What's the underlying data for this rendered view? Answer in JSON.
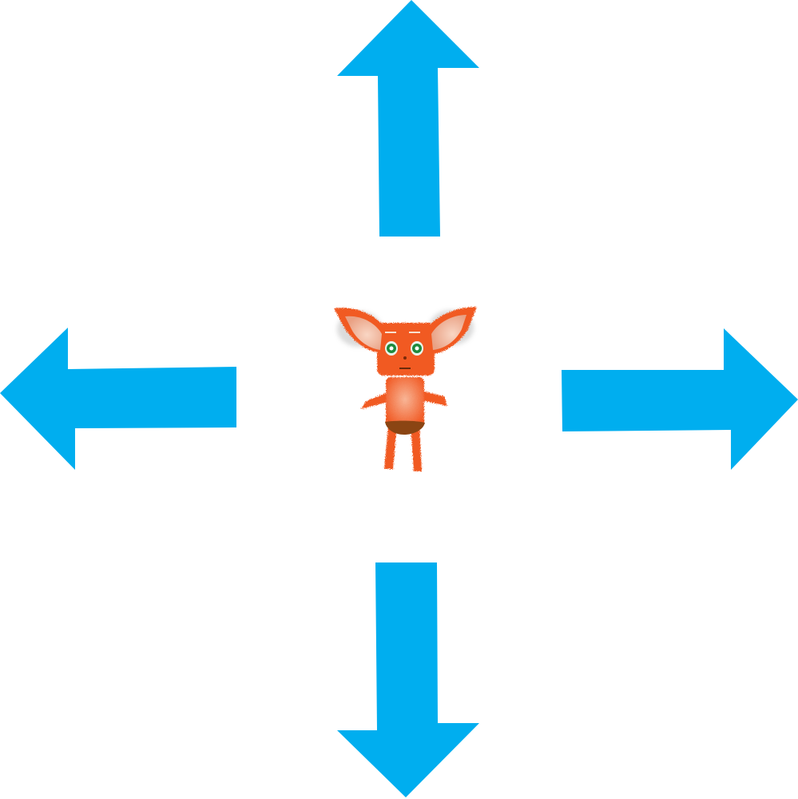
{
  "game": {
    "arrow_color": "#00aeef",
    "controls": [
      {
        "direction": "up",
        "icon": "arrow-up-icon"
      },
      {
        "direction": "left",
        "icon": "arrow-left-icon"
      },
      {
        "direction": "right",
        "icon": "arrow-right-icon"
      },
      {
        "direction": "down",
        "icon": "arrow-down-icon"
      }
    ],
    "character": {
      "icon": "furry-creature-icon",
      "fur_color": "#f15a24",
      "eye_color": "#1e8a3c",
      "ear_inner_color": "#f4c3a8",
      "loincloth_color": "#8b4513"
    }
  }
}
